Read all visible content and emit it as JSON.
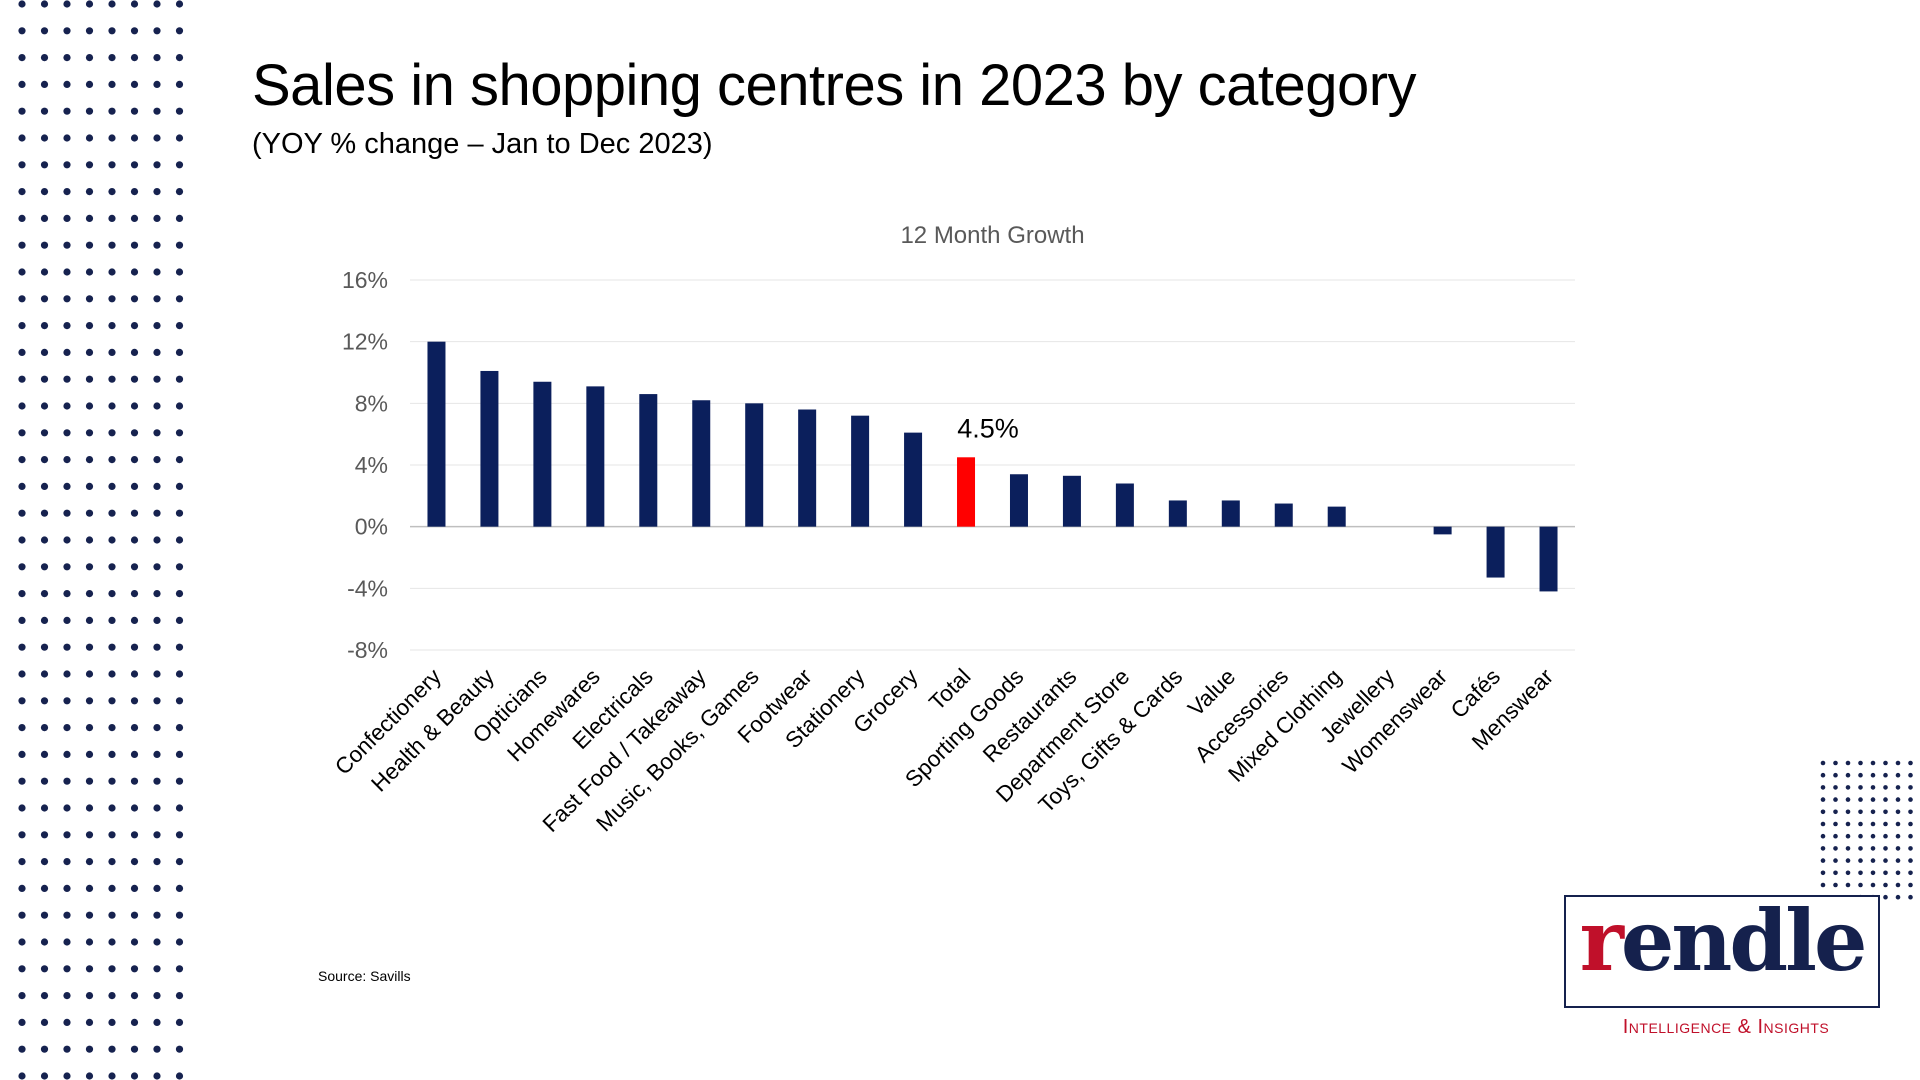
{
  "header": {
    "title": "Sales in shopping centres in 2023 by category",
    "subtitle": "(YOY % change – Jan to Dec 2023)"
  },
  "source": "Source: Savills",
  "logo": {
    "first_letter": "r",
    "rest": "endle",
    "tagline": "Intelligence & Insights"
  },
  "colors": {
    "bar": "#0b1f5c",
    "highlight": "#ff0000",
    "grid": "#e6e6e6",
    "dots": "#16224f",
    "brand_red": "#c0102a"
  },
  "chart_data": {
    "type": "bar",
    "title": "12 Month Growth",
    "xlabel": "",
    "ylabel": "",
    "ylim": [
      -8,
      16
    ],
    "yticks": [
      16,
      12,
      8,
      4,
      0,
      -4,
      -8
    ],
    "ytick_labels": [
      "16%",
      "12%",
      "8%",
      "4%",
      "0%",
      "-4%",
      "-8%"
    ],
    "categories": [
      "Confectionery",
      "Health & Beauty",
      "Opticians",
      "Homewares",
      "Electricals",
      "Fast Food / Takeaway",
      "Music, Books, Games",
      "Footwear",
      "Stationery",
      "Grocery",
      "Total",
      "Sporting Goods",
      "Restaurants",
      "Department Store",
      "Toys, Gifts & Cards",
      "Value",
      "Accessories",
      "Mixed Clothing",
      "Jewellery",
      "Womenswear",
      "Cafés",
      "Menswear"
    ],
    "values": [
      12.0,
      10.1,
      9.4,
      9.1,
      8.6,
      8.2,
      8.0,
      7.6,
      7.2,
      6.1,
      4.5,
      3.4,
      3.3,
      2.8,
      1.7,
      1.7,
      1.5,
      1.3,
      0.0,
      -0.5,
      -3.3,
      -4.2
    ],
    "highlight_category": "Total",
    "data_labels": [
      {
        "category": "Total",
        "text": "4.5%"
      }
    ],
    "grid": true
  }
}
